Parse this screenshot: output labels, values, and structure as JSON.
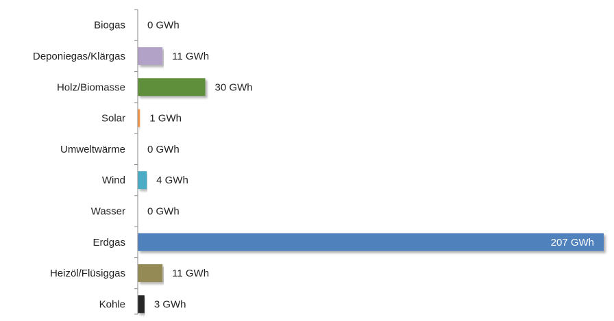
{
  "chart_data": {
    "type": "bar",
    "orientation": "horizontal",
    "unit": "GWh",
    "categories": [
      "Biogas",
      "Deponiegas/Klärgas",
      "Holz/Biomasse",
      "Solar",
      "Umweltwärme",
      "Wind",
      "Wasser",
      "Erdgas",
      "Heizöl/Flüsiggas",
      "Kohle"
    ],
    "values": [
      0,
      11,
      30,
      1,
      0,
      4,
      0,
      207,
      11,
      3
    ],
    "value_labels": [
      "0 GWh",
      "11 GWh",
      "30 GWh",
      "1 GWh",
      "0 GWh",
      "4 GWh",
      "0 GWh",
      "207 GWh",
      "11 GWh",
      "3 GWh"
    ],
    "colors": [
      "#9bbb59",
      "#b3a2c7",
      "#5f8f3a",
      "#f79646",
      "#eeeeee",
      "#4bacc6",
      "#9dc3e6",
      "#4f81bd",
      "#948a54",
      "#262626"
    ],
    "grid": false,
    "legend": "none"
  }
}
